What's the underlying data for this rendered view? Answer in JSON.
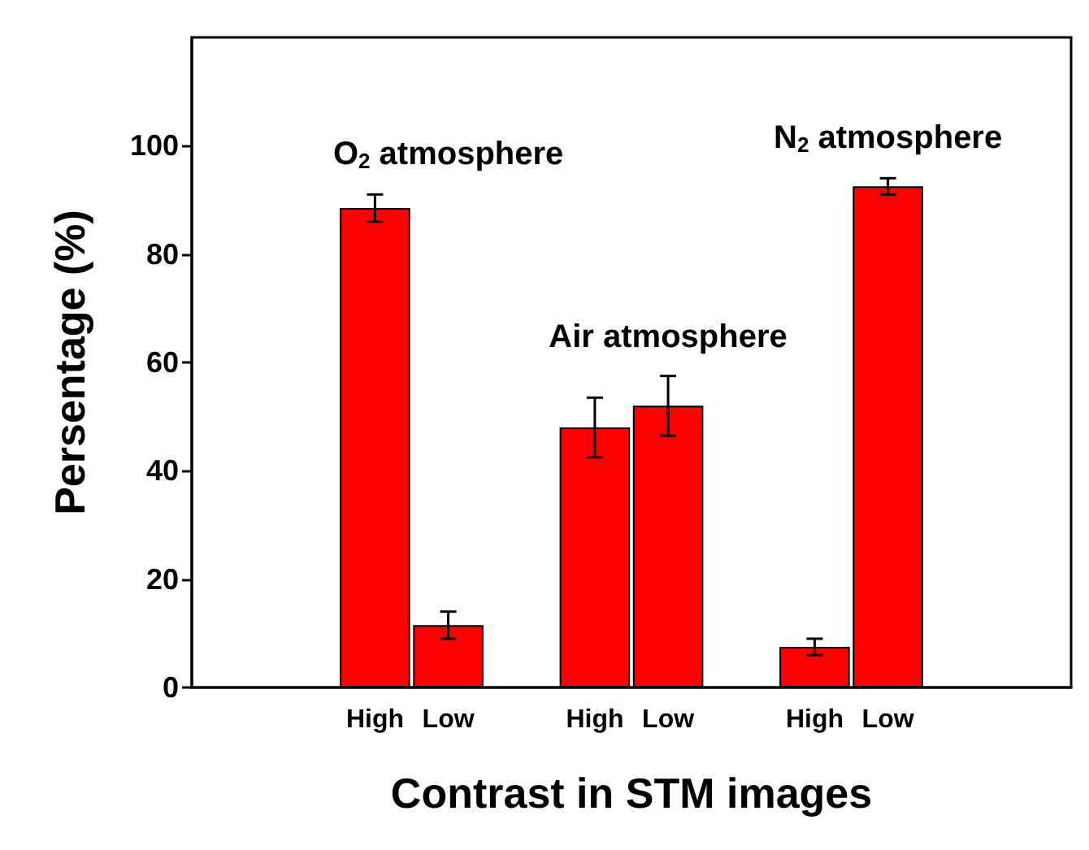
{
  "chart_data": {
    "type": "bar",
    "xlabel": "Contrast in STM images",
    "ylabel": "Persentage (%)",
    "categories": [
      null,
      null,
      "High",
      "Low",
      null,
      "High",
      "Low",
      null,
      "High",
      "Low",
      null,
      null
    ],
    "values": [
      null,
      null,
      88.5,
      11.5,
      null,
      48,
      52,
      null,
      7.5,
      92.5,
      null,
      null
    ],
    "errors": [
      null,
      null,
      2.5,
      2.5,
      null,
      5.5,
      5.5,
      null,
      1.5,
      1.5,
      null,
      null
    ],
    "color": "#ff0000",
    "ylim": [
      0,
      120
    ],
    "yticks": [
      0,
      20,
      40,
      60,
      80,
      100
    ],
    "grid": false,
    "annotations": [
      "O$_{2}$ atmosphere",
      "Air atmosphere",
      "N$_{2}$ atmosphere"
    ]
  }
}
